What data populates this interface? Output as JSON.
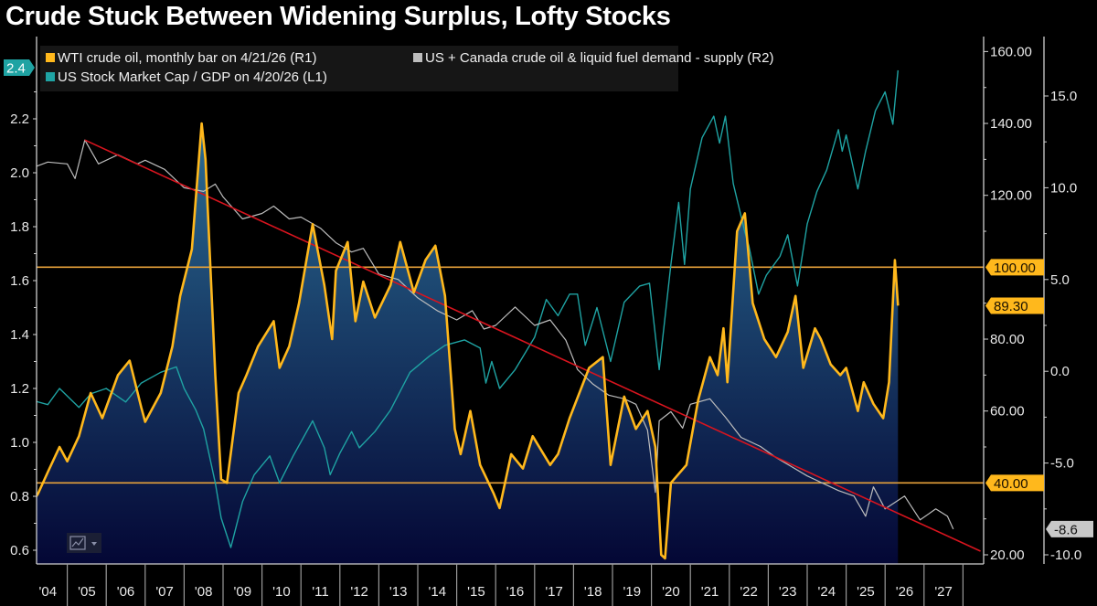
{
  "title": "Crude Stuck Between Widening Surplus, Lofty Stocks",
  "chart_data": {
    "type": "line",
    "title": "Crude Stuck Between Widening Surplus, Lofty Stocks",
    "grid": false,
    "legend_placement": "top-left",
    "x_tick_labels": [
      "'04",
      "'05",
      "'06",
      "'07",
      "'08",
      "'09",
      "'10",
      "'11",
      "'12",
      "'13",
      "'14",
      "'15",
      "'16",
      "'17",
      "'18",
      "'19",
      "'20",
      "'21",
      "'22",
      "'23",
      "'24",
      "'25",
      "'26",
      "'27"
    ],
    "xlim": [
      2004,
      2028.45
    ],
    "axes": {
      "L1": {
        "ylim": [
          0.55,
          2.45
        ],
        "ticks": [
          "0.6",
          "0.8",
          "1.0",
          "1.2",
          "1.4",
          "1.6",
          "1.8",
          "2.0",
          "2.2"
        ]
      },
      "R1": {
        "ylim": [
          17,
          163
        ],
        "ticks": [
          "20.00",
          "60.00",
          "80.00",
          "120.00",
          "140.00",
          "160.00"
        ]
      },
      "R2": {
        "ylim": [
          -10.3,
          18
        ],
        "ticks": [
          "-10.0",
          "-5.0",
          "0.0",
          "5.0",
          "10.0",
          "15.0"
        ]
      }
    },
    "value_labels": {
      "L1_last": "2.4",
      "R1_last": "89.30",
      "R1_line_high": "100.00",
      "R1_line_low": "40.00",
      "R2_last": "-8.6"
    },
    "reference_lines": [
      {
        "axis": "R1",
        "value": 100,
        "color": "#e8a23a"
      },
      {
        "axis": "R1",
        "value": 40,
        "color": "#e8a23a"
      }
    ],
    "trendline": {
      "axis": "R2",
      "color": "#d8141e",
      "from": [
        2005.45,
        12.6
      ],
      "to": [
        2028.45,
        -9.8
      ]
    },
    "series": [
      {
        "name": "WTI crude oil, monthly bar on 4/21/26 (R1)",
        "axis": "R1",
        "color": "#ffb81c",
        "area": true,
        "x": [
          2004.0,
          2004.25,
          2004.5,
          2004.8,
          2005.0,
          2005.3,
          2005.6,
          2005.9,
          2006.3,
          2006.6,
          2006.9,
          2007.0,
          2007.4,
          2007.7,
          2007.9,
          2008.2,
          2008.45,
          2008.55,
          2008.8,
          2008.95,
          2009.1,
          2009.4,
          2009.6,
          2009.9,
          2010.3,
          2010.45,
          2010.7,
          2010.95,
          2011.3,
          2011.6,
          2011.8,
          2011.9,
          2012.2,
          2012.4,
          2012.6,
          2012.9,
          2013.3,
          2013.55,
          2013.9,
          2014.2,
          2014.45,
          2014.7,
          2014.95,
          2015.1,
          2015.35,
          2015.6,
          2015.95,
          2016.1,
          2016.4,
          2016.7,
          2016.95,
          2017.4,
          2017.6,
          2017.9,
          2018.4,
          2018.75,
          2018.95,
          2019.3,
          2019.6,
          2019.9,
          2020.1,
          2020.25,
          2020.35,
          2020.5,
          2020.9,
          2021.2,
          2021.5,
          2021.7,
          2021.85,
          2021.95,
          2022.2,
          2022.4,
          2022.6,
          2022.9,
          2023.2,
          2023.5,
          2023.7,
          2023.9,
          2024.2,
          2024.35,
          2024.6,
          2024.85,
          2025.0,
          2025.3,
          2025.45,
          2025.7,
          2025.95,
          2026.1,
          2026.25,
          2026.33
        ],
        "values": [
          33,
          37,
          43,
          50,
          46,
          53,
          65,
          58,
          70,
          74,
          61,
          57,
          65,
          78,
          92,
          105,
          140,
          130,
          70,
          41,
          40,
          65,
          70,
          78,
          85,
          72,
          78,
          90,
          112,
          95,
          80,
          99,
          107,
          85,
          96,
          86,
          95,
          107,
          93,
          102,
          106,
          92,
          55,
          48,
          60,
          45,
          37,
          33,
          48,
          44,
          53,
          45,
          48,
          58,
          72,
          75,
          45,
          64,
          55,
          60,
          50,
          20,
          19,
          40,
          45,
          63,
          75,
          70,
          83,
          68,
          110,
          115,
          90,
          80,
          75,
          82,
          92,
          72,
          83,
          80,
          73,
          70,
          72,
          60,
          68,
          62,
          58,
          68,
          102,
          89.3
        ]
      },
      {
        "name": "US + Canada crude oil & liquid fuel demand - supply (R2)",
        "axis": "R2",
        "color": "#bdbdbd",
        "x": [
          2004.0,
          2004.5,
          2005.0,
          2005.2,
          2005.45,
          2005.8,
          2006.3,
          2006.8,
          2007.0,
          2007.5,
          2008.0,
          2008.5,
          2008.8,
          2009.0,
          2009.5,
          2010.0,
          2010.3,
          2010.7,
          2011.0,
          2011.5,
          2011.9,
          2012.3,
          2012.6,
          2013.0,
          2013.5,
          2014.0,
          2014.5,
          2015.0,
          2015.4,
          2015.7,
          2016.0,
          2016.5,
          2017.0,
          2017.4,
          2017.8,
          2018.1,
          2018.5,
          2018.9,
          2019.3,
          2019.6,
          2019.9,
          2020.1,
          2020.2,
          2020.5,
          2020.8,
          2021.0,
          2021.5,
          2021.9,
          2022.3,
          2022.8,
          2023.2,
          2023.6,
          2024.0,
          2024.4,
          2024.8,
          2025.2,
          2025.5,
          2025.7,
          2026.0,
          2026.5,
          2026.9,
          2027.3,
          2027.6,
          2027.75
        ],
        "values": [
          11.0,
          11.4,
          11.3,
          10.5,
          12.6,
          11.3,
          11.8,
          11.3,
          11.5,
          11.0,
          10.0,
          9.8,
          10.2,
          9.5,
          8.3,
          8.6,
          9.0,
          8.3,
          8.4,
          7.8,
          7.0,
          6.5,
          6.7,
          5.3,
          5.0,
          4.0,
          3.3,
          2.8,
          3.3,
          2.3,
          2.5,
          3.5,
          2.5,
          2.8,
          1.7,
          0.1,
          -0.7,
          -1.3,
          -1.5,
          -1.8,
          -3.2,
          -6.6,
          -2.7,
          -2.2,
          -3.1,
          -1.8,
          -1.5,
          -2.5,
          -3.6,
          -4.1,
          -4.7,
          -5.2,
          -5.7,
          -6.1,
          -6.5,
          -6.8,
          -7.9,
          -6.3,
          -7.5,
          -6.8,
          -8.1,
          -7.5,
          -7.9,
          -8.6
        ]
      },
      {
        "name": "US Stock Market Cap / GDP on 4/20/26 (L1)",
        "axis": "L1",
        "color": "#1fa3a3",
        "x": [
          2004.0,
          2004.5,
          2004.8,
          2005.3,
          2005.6,
          2006.0,
          2006.5,
          2006.9,
          2007.4,
          2007.8,
          2008.0,
          2008.3,
          2008.5,
          2008.8,
          2008.95,
          2009.2,
          2009.5,
          2009.8,
          2010.2,
          2010.45,
          2010.8,
          2011.3,
          2011.6,
          2011.75,
          2012.0,
          2012.3,
          2012.5,
          2012.9,
          2013.3,
          2013.8,
          2014.3,
          2014.7,
          2015.2,
          2015.6,
          2015.75,
          2015.9,
          2016.1,
          2016.5,
          2017.0,
          2017.3,
          2017.6,
          2017.9,
          2018.1,
          2018.3,
          2018.6,
          2018.95,
          2019.3,
          2019.7,
          2019.95,
          2020.2,
          2020.5,
          2020.7,
          2020.85,
          2021.0,
          2021.3,
          2021.6,
          2021.75,
          2021.9,
          2022.1,
          2022.4,
          2022.5,
          2022.75,
          2022.95,
          2023.3,
          2023.5,
          2023.75,
          2024.0,
          2024.25,
          2024.5,
          2024.8,
          2024.9,
          2025.0,
          2025.3,
          2025.5,
          2025.75,
          2026.0,
          2026.2,
          2026.33
        ],
        "values": [
          1.16,
          1.14,
          1.2,
          1.13,
          1.18,
          1.2,
          1.15,
          1.22,
          1.26,
          1.28,
          1.2,
          1.12,
          1.05,
          0.85,
          0.72,
          0.61,
          0.78,
          0.88,
          0.95,
          0.85,
          0.95,
          1.08,
          0.98,
          0.88,
          0.96,
          1.04,
          0.98,
          1.04,
          1.12,
          1.26,
          1.32,
          1.36,
          1.38,
          1.35,
          1.22,
          1.3,
          1.2,
          1.27,
          1.39,
          1.53,
          1.47,
          1.55,
          1.55,
          1.36,
          1.5,
          1.3,
          1.52,
          1.58,
          1.59,
          1.27,
          1.66,
          1.89,
          1.66,
          1.94,
          2.13,
          2.21,
          2.11,
          2.21,
          1.96,
          1.78,
          1.73,
          1.55,
          1.62,
          1.69,
          1.77,
          1.58,
          1.81,
          1.93,
          2.01,
          2.16,
          2.08,
          2.14,
          1.94,
          2.08,
          2.23,
          2.3,
          2.18,
          2.38
        ]
      }
    ]
  },
  "colors": {
    "background": "#000000",
    "wti": "#ffb81c",
    "balance": "#bdbdbd",
    "mktcap": "#1fa3a3",
    "trend": "#d8141e",
    "reference": "#e8a23a",
    "area_top": "#2b6d94",
    "area_bottom": "#040735"
  },
  "icons": {
    "chart_type_button": "line-chart-icon"
  }
}
